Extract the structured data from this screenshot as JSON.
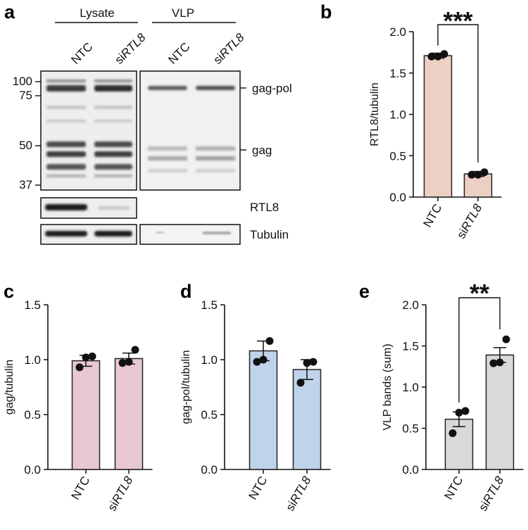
{
  "panels": {
    "a": "a",
    "b": "b",
    "c": "c",
    "d": "d",
    "e": "e"
  },
  "blot": {
    "groups": [
      "Lysate",
      "VLP"
    ],
    "lanes": {
      "lane1": {
        "prefix": "NTC",
        "italic": ""
      },
      "lane2": {
        "prefix": "si",
        "italic": "RTL8"
      },
      "lane3": {
        "prefix": "NTC",
        "italic": ""
      },
      "lane4": {
        "prefix": "si",
        "italic": "RTL8"
      }
    },
    "markers": [
      "100",
      "75",
      "50",
      "37"
    ],
    "band_labels": [
      "gag-pol",
      "gag",
      "RTL8",
      "Tubulin"
    ]
  },
  "chart_data": [
    {
      "panel": "b",
      "type": "bar",
      "categories": [
        "NTC",
        "siRTL8"
      ],
      "category_labels": [
        {
          "prefix": "NTC",
          "italic": ""
        },
        {
          "prefix": "si",
          "italic": "RTL8"
        }
      ],
      "values": [
        1.71,
        0.28
      ],
      "errors": [
        0.03,
        0.03
      ],
      "points": [
        [
          1.7,
          1.7,
          1.73
        ],
        [
          0.27,
          0.27,
          0.3
        ]
      ],
      "ylabel": "RTL8/tubulin",
      "ylim": [
        0,
        2.0
      ],
      "yticks": [
        "0.0",
        "0.5",
        "1.0",
        "1.5",
        "2.0"
      ],
      "significance": "***",
      "colors": {
        "fill": "#edd0c4",
        "stroke": "#222222"
      }
    },
    {
      "panel": "c",
      "type": "bar",
      "categories": [
        "NTC",
        "siRTL8"
      ],
      "category_labels": [
        {
          "prefix": "NTC",
          "italic": ""
        },
        {
          "prefix": "si",
          "italic": "RTL8"
        }
      ],
      "values": [
        0.99,
        1.01
      ],
      "errors": [
        0.05,
        0.05
      ],
      "points": [
        [
          0.93,
          1.02,
          1.03
        ],
        [
          0.97,
          0.98,
          1.09
        ]
      ],
      "ylabel": "gag/tubulin",
      "ylim": [
        0,
        1.5
      ],
      "yticks": [
        "0.0",
        "0.5",
        "1.0",
        "1.5"
      ],
      "significance": "",
      "colors": {
        "fill": "#e8c8d0",
        "stroke": "#222222"
      }
    },
    {
      "panel": "d",
      "type": "bar",
      "categories": [
        "NTC",
        "siRTL8"
      ],
      "category_labels": [
        {
          "prefix": "NTC",
          "italic": ""
        },
        {
          "prefix": "si",
          "italic": "RTL8"
        }
      ],
      "values": [
        1.08,
        0.91
      ],
      "errors": [
        0.09,
        0.09
      ],
      "points": [
        [
          0.98,
          1.0,
          1.17
        ],
        [
          0.79,
          0.97,
          0.98
        ]
      ],
      "ylabel": "gag-pol/tubulin",
      "ylim": [
        0,
        1.5
      ],
      "yticks": [
        "0.0",
        "0.5",
        "1.0",
        "1.5"
      ],
      "significance": "",
      "colors": {
        "fill": "#bfd3ea",
        "stroke": "#222222"
      }
    },
    {
      "panel": "e",
      "type": "bar",
      "categories": [
        "NTC",
        "siRTL8"
      ],
      "category_labels": [
        {
          "prefix": "NTC",
          "italic": ""
        },
        {
          "prefix": "si",
          "italic": "RTL8"
        }
      ],
      "values": [
        0.61,
        1.39
      ],
      "errors": [
        0.09,
        0.09
      ],
      "points": [
        [
          0.44,
          0.69,
          0.71
        ],
        [
          1.29,
          1.3,
          1.58
        ]
      ],
      "ylabel": "VLP bands (sum)",
      "ylim": [
        0,
        2.0
      ],
      "yticks": [
        "0.0",
        "0.5",
        "1.0",
        "1.5",
        "2.0"
      ],
      "significance": "**",
      "colors": {
        "fill": "#d9d9d9",
        "stroke": "#222222"
      }
    }
  ]
}
